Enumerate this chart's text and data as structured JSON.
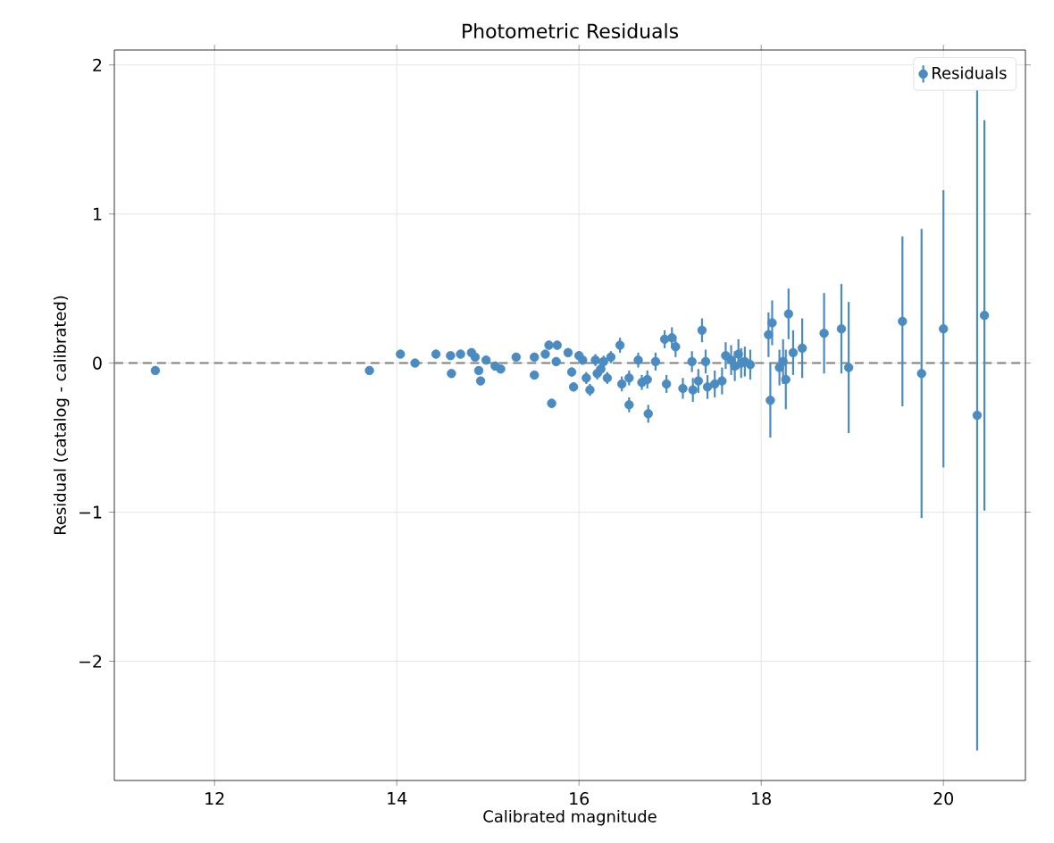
{
  "chart_data": {
    "type": "scatter",
    "title": "Photometric Residuals",
    "xlabel": "Calibrated magnitude",
    "ylabel": "Residual (catalog - calibrated)",
    "xlim": [
      10.9,
      20.9
    ],
    "ylim": [
      -2.8,
      2.1
    ],
    "xticks": [
      12,
      14,
      16,
      18,
      20
    ],
    "yticks": [
      {
        "value": -2,
        "label": "−2"
      },
      {
        "value": -1,
        "label": "−1"
      },
      0,
      1,
      2
    ],
    "grid": true,
    "legend": "top right",
    "marker": "circle",
    "ref_lines": [
      {
        "axis": "y",
        "value": 0,
        "color": "#808080",
        "line_style": "dashed"
      }
    ],
    "series": [
      {
        "name": "Residuals",
        "color": "#4a8cc2",
        "x": [
          11.35,
          13.7,
          14.04,
          14.2,
          14.43,
          14.59,
          14.6,
          14.7,
          14.82,
          14.86,
          14.9,
          14.92,
          14.98,
          15.08,
          15.14,
          15.31,
          15.51,
          15.51,
          15.63,
          15.67,
          15.7,
          15.75,
          15.76,
          15.88,
          15.92,
          15.94,
          16.0,
          16.04,
          16.08,
          16.12,
          16.18,
          16.2,
          16.24,
          16.27,
          16.31,
          16.35,
          16.45,
          16.47,
          16.55,
          16.55,
          16.65,
          16.69,
          16.75,
          16.76,
          16.84,
          16.94,
          16.96,
          17.02,
          17.06,
          17.14,
          17.24,
          17.25,
          17.31,
          17.35,
          17.39,
          17.41,
          17.49,
          17.57,
          17.61,
          17.67,
          17.71,
          17.75,
          17.78,
          17.82,
          17.88,
          18.08,
          18.12,
          18.1,
          18.2,
          18.24,
          18.27,
          18.3,
          18.35,
          18.45,
          18.69,
          18.88,
          18.96,
          19.55,
          19.76,
          20.0,
          20.37,
          20.45
        ],
        "values": [
          -0.05,
          -0.05,
          0.06,
          0.0,
          0.06,
          0.05,
          -0.07,
          0.06,
          0.07,
          0.04,
          -0.05,
          -0.12,
          0.02,
          -0.02,
          -0.04,
          0.04,
          0.04,
          -0.08,
          0.06,
          0.12,
          -0.27,
          0.01,
          0.12,
          0.07,
          -0.06,
          -0.16,
          0.05,
          0.02,
          -0.1,
          -0.18,
          0.02,
          -0.07,
          -0.04,
          0.01,
          -0.1,
          0.04,
          0.12,
          -0.14,
          -0.1,
          -0.28,
          0.02,
          -0.13,
          -0.11,
          -0.34,
          0.01,
          0.16,
          -0.14,
          0.17,
          0.11,
          -0.17,
          0.01,
          -0.18,
          -0.12,
          0.22,
          0.01,
          -0.16,
          -0.14,
          -0.12,
          0.05,
          0.02,
          -0.02,
          0.06,
          0.0,
          0.01,
          -0.01,
          0.19,
          0.27,
          -0.25,
          -0.03,
          0.01,
          -0.11,
          0.33,
          0.07,
          0.1,
          0.2,
          0.23,
          -0.03,
          0.28,
          -0.07,
          0.23,
          -0.35,
          0.32
        ],
        "errors": [
          0.01,
          0.01,
          0.01,
          0.01,
          0.01,
          0.01,
          0.01,
          0.01,
          0.01,
          0.01,
          0.02,
          0.02,
          0.02,
          0.02,
          0.02,
          0.02,
          0.02,
          0.02,
          0.02,
          0.03,
          0.03,
          0.03,
          0.03,
          0.03,
          0.03,
          0.03,
          0.03,
          0.03,
          0.04,
          0.04,
          0.04,
          0.04,
          0.04,
          0.04,
          0.04,
          0.04,
          0.05,
          0.05,
          0.05,
          0.05,
          0.05,
          0.05,
          0.06,
          0.06,
          0.06,
          0.06,
          0.06,
          0.07,
          0.07,
          0.07,
          0.07,
          0.08,
          0.08,
          0.08,
          0.08,
          0.08,
          0.09,
          0.09,
          0.09,
          0.1,
          0.1,
          0.1,
          0.1,
          0.1,
          0.1,
          0.15,
          0.15,
          0.25,
          0.12,
          0.15,
          0.2,
          0.17,
          0.15,
          0.2,
          0.27,
          0.3,
          0.44,
          0.57,
          0.97,
          0.93,
          2.25,
          1.31
        ]
      }
    ]
  }
}
